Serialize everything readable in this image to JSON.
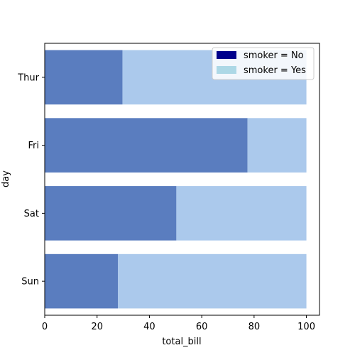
{
  "chart_data": {
    "type": "bar",
    "orientation": "horizontal",
    "stacked": true,
    "categories": [
      "Thur",
      "Fri",
      "Sat",
      "Sun"
    ],
    "series": [
      {
        "name": "smoker = No",
        "values": [
          29.7,
          77.5,
          50.3,
          28.0
        ]
      },
      {
        "name": "smoker = Yes",
        "values": [
          70.3,
          22.5,
          49.7,
          72.0
        ]
      }
    ],
    "xlabel": "total_bill",
    "ylabel": "day",
    "xlim": [
      0,
      105
    ],
    "xticks": [
      "0",
      "20",
      "40",
      "60",
      "80",
      "100"
    ],
    "legend": {
      "placement": "top-right",
      "entries": [
        {
          "label": "smoker = No",
          "color": "#00008b"
        },
        {
          "label": "smoker = Yes",
          "color": "#add8e6"
        }
      ]
    },
    "colors": {
      "bar_no": "#5a7dbf",
      "bar_yes": "#abc9ec"
    },
    "grid": false
  }
}
